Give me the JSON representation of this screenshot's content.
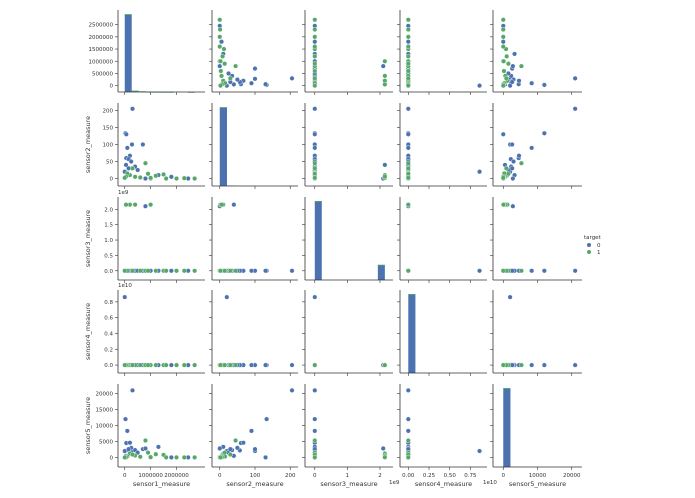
{
  "chart_data": {
    "type": "scatter",
    "subtype": "pairplot",
    "variables": [
      "sensor1_measure",
      "sensor2_measure",
      "sensor3_measure",
      "sensor4_measure",
      "sensor5_measure"
    ],
    "axis_ranges": [
      [
        -260000,
        3100000
      ],
      [
        -22,
        222
      ],
      [
        -300000000,
        2400000000
      ],
      [
        -1000000000,
        9500000000
      ],
      [
        -3000,
        23000
      ]
    ],
    "ticks": [
      {
        "values": [
          0,
          500000,
          1000000,
          1500000,
          2000000,
          2500000
        ],
        "labels": [
          "0",
          "500000",
          "1000000",
          "1500000",
          "2000000",
          "2500000"
        ],
        "x_values": [
          0,
          1000000,
          2000000
        ],
        "x_labels": [
          "0",
          "1000000",
          "2000000"
        ],
        "offset": ""
      },
      {
        "values": [
          0,
          50,
          100,
          150,
          200
        ],
        "labels": [
          "0",
          "50",
          "100",
          "150",
          "200"
        ],
        "x_values": [
          0,
          100,
          200
        ],
        "x_labels": [
          "0",
          "100",
          "200"
        ],
        "offset": ""
      },
      {
        "values": [
          0,
          500000000,
          1000000000,
          1500000000,
          2000000000
        ],
        "labels": [
          "0.0",
          "0.5",
          "1.0",
          "1.5",
          "2.0"
        ],
        "x_values": [
          0,
          1000000000,
          2000000000
        ],
        "x_labels": [
          "0",
          "1",
          "2"
        ],
        "offset": "1e9"
      },
      {
        "values": [
          0,
          2000000000,
          4000000000,
          6000000000,
          8000000000
        ],
        "labels": [
          "0.0",
          "0.2",
          "0.4",
          "0.6",
          "0.8"
        ],
        "x_values": [
          0,
          2500000000,
          5000000000,
          7500000000
        ],
        "x_labels": [
          "0.00",
          "0.25",
          "0.50",
          "0.75"
        ],
        "offset": "1e10"
      },
      {
        "values": [
          0,
          5000,
          10000,
          15000,
          20000
        ],
        "labels": [
          "0",
          "5000",
          "10000",
          "15000",
          "20000"
        ],
        "x_values": [
          0,
          10000,
          20000
        ],
        "x_labels": [
          "0",
          "10000",
          "20000"
        ],
        "offset": ""
      }
    ],
    "hue": "target",
    "legend": {
      "title": "target",
      "placement": "right",
      "entries": [
        {
          "label": "0",
          "color": "#4c72b0"
        },
        {
          "label": "1",
          "color": "#55a868"
        }
      ]
    },
    "points_columns": [
      "sensor1_measure",
      "sensor2_measure",
      "sensor3_measure",
      "sensor4_measure",
      "sensor5_measure",
      "target"
    ],
    "points": [
      [
        300000,
        205,
        0,
        0,
        21000,
        0
      ],
      [
        30000,
        133,
        0,
        0,
        12000,
        0
      ],
      [
        280000,
        100,
        0,
        0,
        2000,
        0
      ],
      [
        700000,
        100,
        0,
        0,
        2600,
        0
      ],
      [
        100000,
        90,
        0,
        0,
        8300,
        0
      ],
      [
        60000,
        60,
        0,
        0,
        4500,
        0
      ],
      [
        200000,
        67,
        0,
        0,
        4600,
        0
      ],
      [
        150000,
        57,
        0,
        0,
        2200,
        0
      ],
      [
        250000,
        50,
        0,
        0,
        3000,
        0
      ],
      [
        400000,
        35,
        0,
        0,
        2300,
        0
      ],
      [
        1300000,
        10,
        0,
        0,
        3300,
        0
      ],
      [
        2450000,
        0,
        0,
        0,
        0,
        0
      ],
      [
        0,
        20,
        0,
        8600000000,
        2000,
        0
      ],
      [
        800000,
        0,
        2100000000,
        0,
        2800,
        0
      ],
      [
        500000,
        25,
        0,
        0,
        1500,
        0
      ],
      [
        1800000,
        5,
        0,
        0,
        0,
        0
      ],
      [
        1000000,
        0,
        0,
        0,
        0,
        0
      ],
      [
        50000,
        40,
        2150000000,
        0,
        500,
        0
      ],
      [
        150000,
        30,
        0,
        0,
        2600,
        0
      ],
      [
        60000,
        130,
        0,
        0,
        0,
        0
      ],
      [
        2700000,
        0,
        0,
        0,
        0,
        1
      ],
      [
        800000,
        45,
        0,
        0,
        5300,
        1
      ],
      [
        1500000,
        12,
        0,
        0,
        800,
        1
      ],
      [
        1200000,
        8,
        0,
        0,
        1000,
        1
      ],
      [
        200000,
        10,
        2150000000,
        0,
        1200,
        1
      ],
      [
        400000,
        5,
        2150000000,
        0,
        600,
        1
      ],
      [
        600000,
        3,
        0,
        0,
        200,
        1
      ],
      [
        1000000,
        2,
        2150000000,
        0,
        100,
        1
      ],
      [
        2000000,
        0,
        0,
        0,
        0,
        1
      ],
      [
        2300000,
        1,
        0,
        0,
        0,
        1
      ],
      [
        100000,
        15,
        0,
        0,
        300,
        1
      ],
      [
        50000,
        6,
        2150000000,
        0,
        50,
        1
      ],
      [
        1600000,
        0,
        0,
        0,
        0,
        1
      ],
      [
        900000,
        14,
        0,
        0,
        1500,
        1
      ],
      [
        300000,
        30,
        0,
        0,
        900,
        1
      ],
      [
        0,
        2,
        0,
        0,
        0,
        1
      ]
    ],
    "histograms": [
      {
        "variable": "sensor1_measure",
        "range": [
          0,
          2700000
        ],
        "counts_0": [
          1950,
          30,
          15,
          8,
          4,
          3,
          2,
          1,
          1,
          1
        ],
        "counts_1": [
          20,
          2,
          1,
          1,
          1,
          1,
          1,
          0,
          0,
          1
        ]
      },
      {
        "variable": "sensor2_measure",
        "range": [
          0,
          205
        ],
        "counts_0": [
          1980,
          10,
          5,
          3,
          2,
          1,
          0,
          0,
          0,
          1
        ],
        "counts_1": [
          20,
          0,
          0,
          0,
          0,
          0,
          0,
          0,
          0,
          0
        ]
      },
      {
        "variable": "sensor3_measure",
        "range": [
          0,
          2150000000
        ],
        "counts_0": [
          1620,
          0,
          0,
          0,
          0,
          0,
          0,
          0,
          0,
          310
        ],
        "counts_1": [
          10,
          0,
          0,
          0,
          0,
          0,
          0,
          0,
          0,
          5
        ]
      },
      {
        "variable": "sensor4_measure",
        "range": [
          0,
          8600000000
        ],
        "counts_0": [
          1990,
          0,
          0,
          0,
          0,
          0,
          0,
          0,
          0,
          1
        ],
        "counts_1": [
          10,
          0,
          0,
          0,
          0,
          0,
          0,
          0,
          0,
          0
        ]
      },
      {
        "variable": "sensor5_measure",
        "range": [
          0,
          21000
        ],
        "counts_0": [
          1990,
          5,
          3,
          1,
          1,
          0,
          0,
          0,
          0,
          1
        ],
        "counts_1": [
          15,
          0,
          0,
          0,
          0,
          0,
          0,
          0,
          0,
          0
        ]
      }
    ]
  }
}
